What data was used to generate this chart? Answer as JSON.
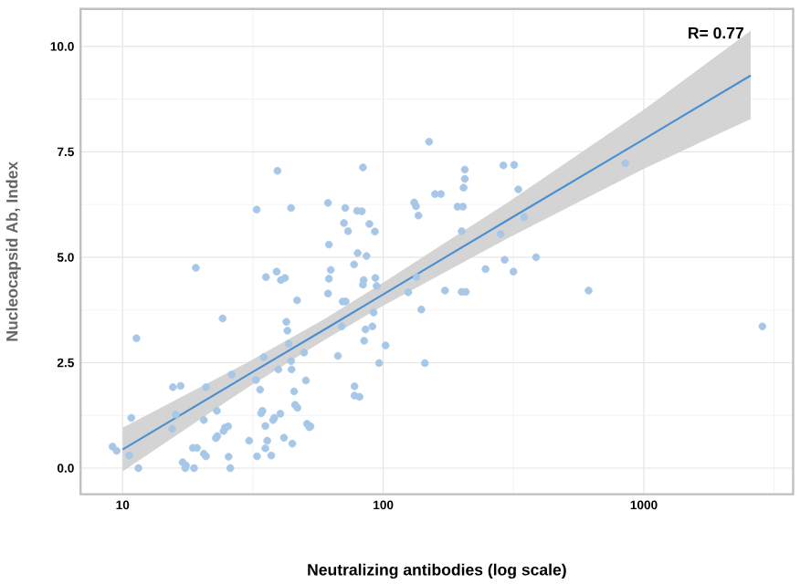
{
  "chart_data": {
    "type": "scatter",
    "xlabel": "Neutralizing antibodies (log scale)",
    "ylabel": "Nucleocapsid Ab, Index",
    "log": "x",
    "grid": true,
    "xlim": [
      6.9,
      3740
    ],
    "ylim": [
      -0.62,
      10.89
    ],
    "xticks": [
      10,
      {
        "value": 31.62,
        "label": null
      },
      100,
      {
        "value": 316.2,
        "label": null
      },
      1000,
      {
        "value": 3162,
        "label": null
      }
    ],
    "yticks": [
      {
        "value": 0,
        "label": "0.0"
      },
      {
        "value": 1.25,
        "label": null
      },
      {
        "value": 2.5,
        "label": "2.5"
      },
      {
        "value": 3.75,
        "label": null
      },
      {
        "value": 5,
        "label": "5.0"
      },
      {
        "value": 6.25,
        "label": null
      },
      {
        "value": 7.5,
        "label": "7.5"
      },
      {
        "value": 8.75,
        "label": null
      },
      {
        "value": 10,
        "label": "10.0"
      }
    ],
    "annotations": [
      "R= 0.77"
    ],
    "series": [
      {
        "marker": "circle",
        "color": "#a7c7e7",
        "x": [
          39.3,
          83.6,
          32.7,
          44.3,
          61.4,
          71.5,
          79.4,
          82.8,
          131.5,
          133.6,
          136.5,
          158.1,
          166.5,
          70.7,
          73.3,
          88.5,
          92.9,
          61.9,
          150,
          205.6,
          205.6,
          203.4,
          289,
          318,
          330,
          192.8,
          202.2,
          347.5,
          200,
          281.8,
          849,
          19.1,
          9.15,
          9.49,
          10.6,
          10.8,
          11.3,
          11.5,
          15.6,
          16.7,
          15.5,
          16.0,
          17.0,
          17.5,
          17.4,
          18.8,
          18.6,
          19.3,
          20.5,
          20.9,
          20.5,
          20.9,
          23.0,
          22.8,
          23.1,
          24.2,
          24.4,
          24.7,
          25.4,
          25.5,
          25.9,
          26.2,
          30.6,
          32.8,
          32.5,
          33.7,
          34.0,
          34.4,
          34.8,
          35.5,
          35.9,
          35.3,
          35.3,
          37.2,
          37.8,
          38.2,
          39.0,
          39.6,
          40.5,
          42.0,
          40.3,
          41.6,
          42.5,
          42.9,
          43.4,
          44.3,
          44.8,
          45.5,
          45.9,
          44.5,
          46.7,
          46.9,
          49.7,
          50.5,
          51.0,
          52.1,
          52.6,
          61.9,
          62.9,
          61.4,
          67.0,
          69.2,
          69.9,
          71.8,
          77.3,
          79.8,
          84.1,
          83.6,
          84.5,
          85.5,
          77.6,
          77.6,
          81.1,
          86.3,
          90.9,
          91.9,
          93.3,
          94.4,
          96.4,
          102.1,
          124.7,
          134.3,
          140.0,
          144.5,
          172.6,
          200,
          207.5,
          292.4,
          316,
          386,
          247,
          614,
          2851
        ],
        "values": [
          7.05,
          7.13,
          6.13,
          6.17,
          6.29,
          6.17,
          6.1,
          6.09,
          6.3,
          6.21,
          5.99,
          6.5,
          6.5,
          5.81,
          5.62,
          5.79,
          5.61,
          5.3,
          7.74,
          7.08,
          6.86,
          6.65,
          7.18,
          7.19,
          6.61,
          6.2,
          6.2,
          5.95,
          5.62,
          5.55,
          7.23,
          4.75,
          0.51,
          0.41,
          0.3,
          1.19,
          3.08,
          0,
          1.92,
          1.95,
          0.93,
          1.27,
          0.14,
          0.06,
          0,
          0,
          0.48,
          0.48,
          0.34,
          0.28,
          1.14,
          1.92,
          1.36,
          0.71,
          0.76,
          3.55,
          0.88,
          0.96,
          0.99,
          0.27,
          0,
          2.22,
          0.65,
          0.28,
          2.09,
          1.86,
          1.3,
          1.36,
          2.63,
          4.53,
          0.65,
          0.47,
          1.0,
          0.3,
          1.14,
          1.19,
          4.66,
          2.34,
          4.46,
          4.51,
          1.29,
          0.72,
          3.47,
          3.26,
          2.95,
          2.54,
          0.58,
          1.82,
          1.5,
          2.34,
          3.98,
          1.43,
          2.74,
          2.08,
          1.05,
          0.97,
          0.99,
          4.49,
          4.7,
          4.14,
          2.66,
          3.36,
          3.95,
          3.95,
          4.83,
          5.1,
          4.46,
          4.35,
          3.02,
          3.29,
          1.94,
          1.72,
          1.69,
          5.03,
          3.36,
          3.69,
          4.51,
          4.32,
          2.49,
          2.91,
          4.17,
          4.53,
          3.76,
          2.49,
          4.21,
          4.18,
          4.18,
          4.94,
          4.66,
          5.0,
          4.72,
          4.21,
          3.36
        ]
      },
      {
        "type": "line",
        "color": "#4a8fd0",
        "x": [
          10,
          30,
          60,
          100,
          300,
          1000,
          2570
        ],
        "values": [
          0.44,
          2.2,
          3.3,
          4.12,
          5.88,
          7.8,
          9.31
        ],
        "lower": [
          -0.08,
          1.9,
          3.05,
          3.85,
          5.45,
          7.1,
          8.28
        ],
        "upper": [
          0.96,
          2.5,
          3.55,
          4.4,
          6.3,
          8.5,
          10.37
        ]
      }
    ]
  }
}
